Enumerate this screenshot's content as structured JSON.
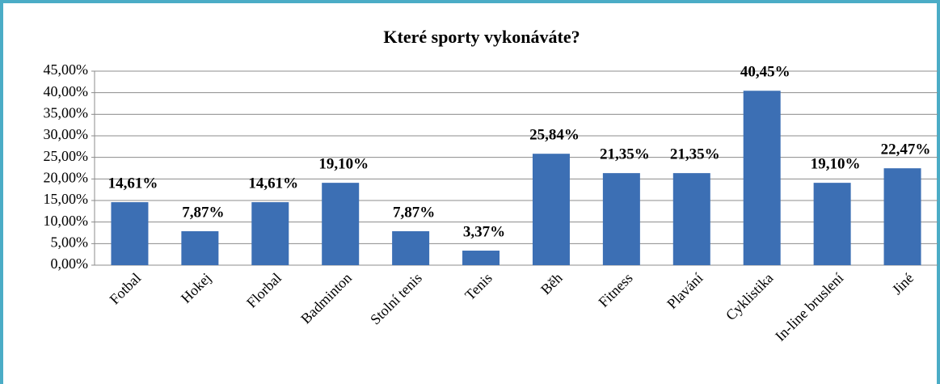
{
  "chart_data": {
    "type": "bar",
    "title": "Které sporty vykonáváte?",
    "categories": [
      "Fotbal",
      "Hokej",
      "Florbal",
      "Badminton",
      "Stolní tenis",
      "Tenis",
      "Běh",
      "Fitness",
      "Plavání",
      "Cyklistika",
      "In-line bruslení",
      "Jiné"
    ],
    "values": [
      14.61,
      7.87,
      14.61,
      19.1,
      7.87,
      3.37,
      25.84,
      21.35,
      21.35,
      40.45,
      19.1,
      22.47
    ],
    "value_labels": [
      "14,61%",
      "7,87%",
      "14,61%",
      "19,10%",
      "7,87%",
      "3,37%",
      "25,84%",
      "21,35%",
      "21,35%",
      "40,45%",
      "19,10%",
      "22,47%"
    ],
    "color": "#3c6fb4",
    "ylim": [
      0,
      45
    ],
    "yticks": [
      {
        "value": 0,
        "label": "0,00%"
      },
      {
        "value": 5,
        "label": "5,00%"
      },
      {
        "value": 10,
        "label": "10,00%"
      },
      {
        "value": 15,
        "label": "15,00%"
      },
      {
        "value": 20,
        "label": "20,00%"
      },
      {
        "value": 25,
        "label": "25,00%"
      },
      {
        "value": 30,
        "label": "30,00%"
      },
      {
        "value": 35,
        "label": "35,00%"
      },
      {
        "value": 40,
        "label": "40,00%"
      },
      {
        "value": 45,
        "label": "45,00%"
      }
    ],
    "grid": true
  }
}
